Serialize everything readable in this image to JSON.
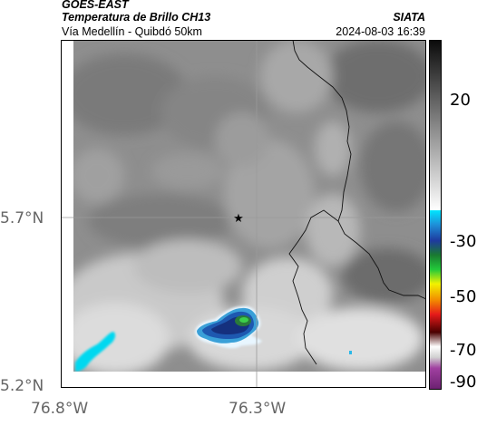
{
  "header": {
    "satellite": "GOES-EAST",
    "product": "Temperatura de Brillo CH13",
    "region": "Vía Medellín - Quibdó 50km",
    "agency": "SIATA",
    "datetime": "2024-08-03 16:39"
  },
  "map": {
    "lat_labels": [
      "5.7°N",
      "5.2°N"
    ],
    "lon_labels": [
      "76.8°W",
      "76.3°W"
    ],
    "marker": "star-marker"
  },
  "colorbar": {
    "labels": [
      "20",
      "-30",
      "-50",
      "-70",
      "-90"
    ],
    "colors": {
      "top": "#1a1a1a",
      "gray_mid": "#b0b0b0",
      "white": "#ffffff",
      "cyan": "#00e6ff",
      "blue": "#1e3a9e",
      "green": "#22c93a",
      "yellow": "#f2f200",
      "red": "#e61a1a",
      "dark_red": "#4a0000",
      "purple": "#a040a0"
    }
  }
}
